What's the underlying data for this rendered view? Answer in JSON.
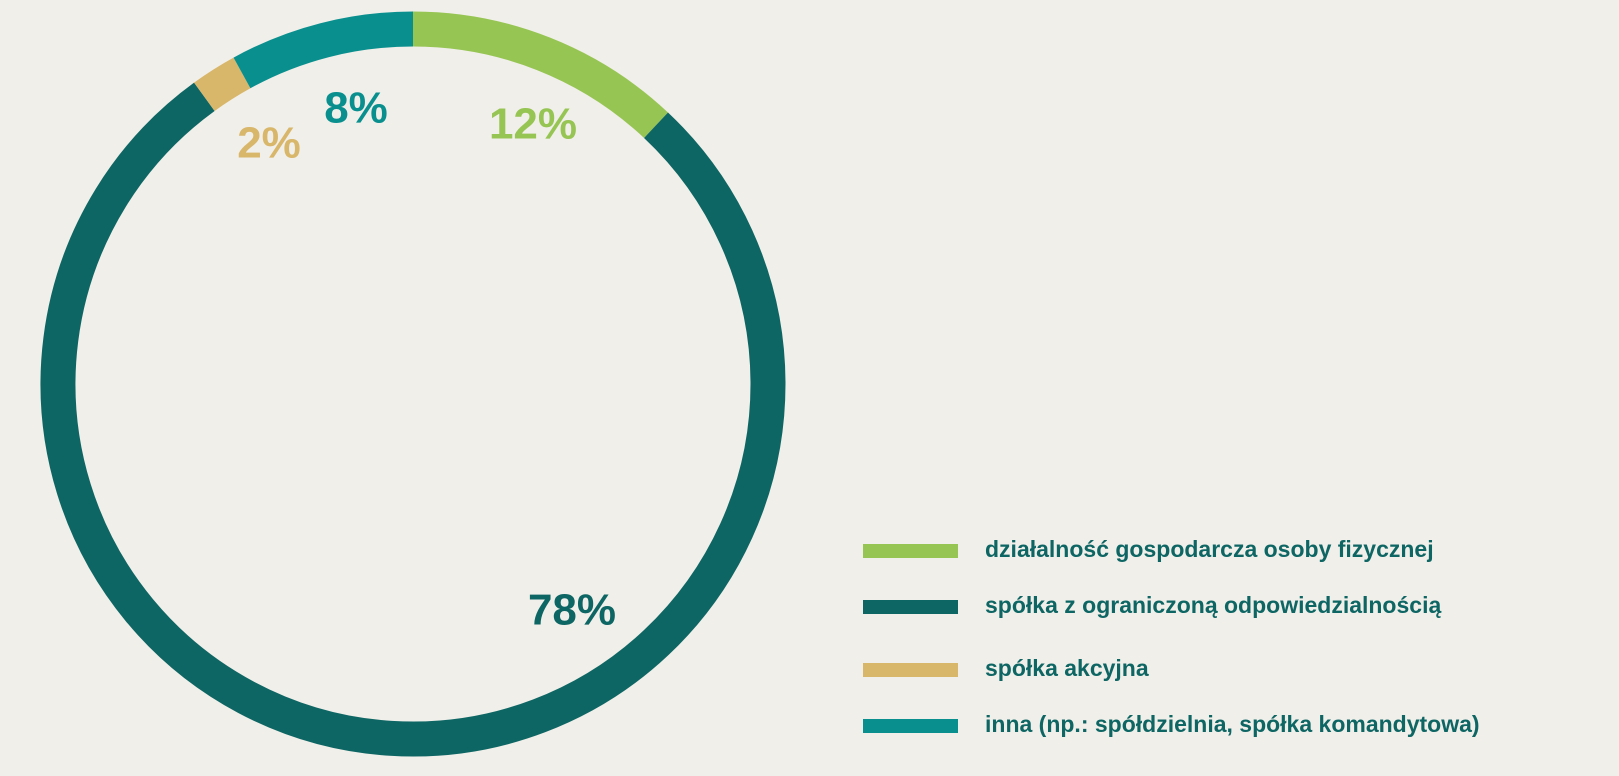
{
  "chart_data": {
    "type": "donut",
    "categories": [
      "działalność gospodarcza osoby fizycznej",
      "spółka z ograniczoną odpowiedzialnością",
      "spółka akcyjna",
      "inna (np.: spółdzielnia, spółka komandytowa)"
    ],
    "values": [
      12,
      78,
      2,
      8
    ],
    "value_labels": [
      "12%",
      "78%",
      "2%",
      "8%"
    ],
    "colors": [
      "#97c554",
      "#0e6664",
      "#d8b66a",
      "#0a8f8f"
    ],
    "legend": "bottom-right"
  }
}
